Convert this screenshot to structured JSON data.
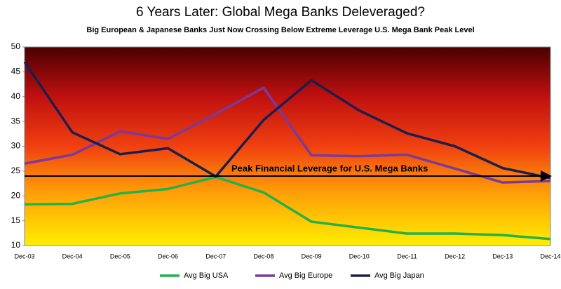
{
  "chart_data": {
    "type": "line",
    "title": "6 Years Later:  Global Mega Banks Deleveraged?",
    "subtitle": "Big European & Japanese Banks Just Now Crossing Below Extreme Leverage U.S. Mega Bank Peak Level",
    "categories": [
      "Dec-03",
      "Dec-04",
      "Dec-05",
      "Dec-06",
      "Dec-07",
      "Dec-08",
      "Dec-09",
      "Dec-10",
      "Dec-11",
      "Dec-12",
      "Dec-13",
      "Dec-14"
    ],
    "series": [
      {
        "name": "Avg Big USA",
        "color": "#22b14c",
        "values": [
          18.3,
          18.4,
          20.5,
          21.4,
          23.8,
          20.7,
          14.8,
          13.6,
          12.4,
          12.4,
          12.1,
          11.3
        ]
      },
      {
        "name": "Avg Big Europe",
        "color": "#7a3a9a",
        "values": [
          26.5,
          28.3,
          33,
          31.5,
          36.5,
          41.8,
          28.2,
          28,
          28.3,
          25.5,
          22.7,
          23
        ]
      },
      {
        "name": "Avg Big Japan",
        "color": "#1a1f4d",
        "values": [
          47,
          32.8,
          28.4,
          29.6,
          23.9,
          35.3,
          43.3,
          37.2,
          32.6,
          30,
          25.6,
          23.6
        ]
      }
    ],
    "reference_line": {
      "value": 24,
      "label": "Peak Financial Leverage for U.S. Mega Banks"
    },
    "ylim": [
      10,
      50
    ],
    "yticks": [
      10,
      15,
      20,
      25,
      30,
      35,
      40,
      45,
      50
    ]
  }
}
